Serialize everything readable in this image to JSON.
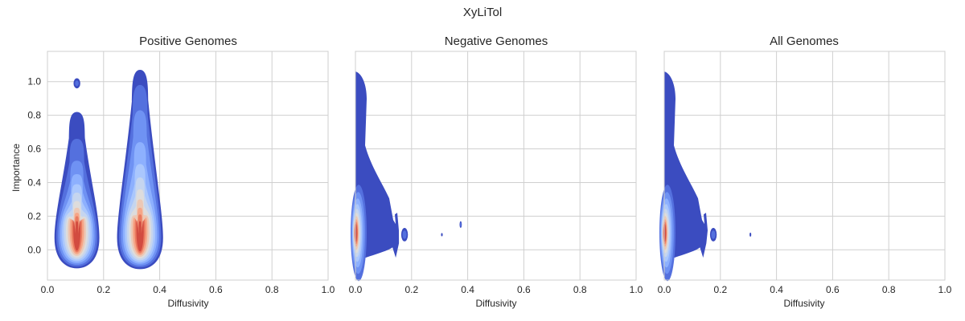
{
  "colors": {
    "background": "#ffffff",
    "grid": "#cfcfcf",
    "frame": "#cfcfcf",
    "text": "#262626",
    "colormap": "coolwarm",
    "levels": [
      "#3b4cc0",
      "#5470de",
      "#6f92f3",
      "#8db0fe",
      "#aac7fd",
      "#c5d5ef",
      "#dddcdc",
      "#ecc8b5",
      "#f6a688",
      "#ea7b60",
      "#d24b40"
    ]
  },
  "chart_data": {
    "type": "kde_contour_panels",
    "title": "XyLiTol",
    "panels": [
      {
        "title": "Positive Genomes",
        "xlabel": "Diffusivity",
        "ylabel": "Importance",
        "xlim": [
          0.0,
          1.0
        ],
        "ylim": [
          -0.18,
          1.18
        ],
        "xticks": [
          "0.0",
          "0.2",
          "0.4",
          "0.6",
          "0.8",
          "1.0"
        ],
        "yticks": [
          "0.0",
          "0.2",
          "0.4",
          "0.6",
          "0.8",
          "1.0"
        ],
        "show_yticklabels": true,
        "grid": true,
        "density_clusters": [
          {
            "center_x": 0.105,
            "peak_y": 0.11,
            "half_width": 0.08,
            "y_bottom": -0.11,
            "y_top": 0.82,
            "level_tops": [
              0.66,
              0.53,
              0.45,
              0.39,
              0.34,
              0.29,
              0.25,
              0.22,
              0.2,
              0.17
            ]
          },
          {
            "center_x": 0.105,
            "center_y": 0.99,
            "type": "blob",
            "rx": 0.012,
            "ry": 0.03
          },
          {
            "center_x": 0.33,
            "peak_y": 0.11,
            "half_width": 0.082,
            "y_bottom": -0.115,
            "y_top": 1.07,
            "level_tops": [
              0.98,
              0.83,
              0.64,
              0.51,
              0.43,
              0.36,
              0.3,
              0.25,
              0.21,
              0.17
            ]
          }
        ]
      },
      {
        "title": "Negative Genomes",
        "xlabel": "Diffusivity",
        "ylabel": "",
        "xlim": [
          0.0,
          1.0
        ],
        "ylim": [
          -0.18,
          1.18
        ],
        "xticks": [
          "0.0",
          "0.2",
          "0.4",
          "0.6",
          "0.8",
          "1.0"
        ],
        "yticks": [
          "0.0",
          "0.2",
          "0.4",
          "0.6",
          "0.8",
          "1.0"
        ],
        "show_yticklabels": false,
        "grid": true,
        "density_clusters": [
          {
            "type": "edge",
            "peak_y": 0.11,
            "y_top": 1.06,
            "y_bottom": -0.07,
            "max_x": 0.155
          },
          {
            "type": "small_blob",
            "center_x": 0.175,
            "center_y": 0.09,
            "rx": 0.012,
            "ry": 0.04
          },
          {
            "type": "small_blob",
            "center_x": 0.308,
            "center_y": 0.09,
            "rx": 0.003,
            "ry": 0.01
          },
          {
            "type": "small_blob",
            "center_x": 0.375,
            "center_y": 0.15,
            "rx": 0.004,
            "ry": 0.02
          }
        ]
      },
      {
        "title": "All Genomes",
        "xlabel": "Diffusivity",
        "ylabel": "",
        "xlim": [
          0.0,
          1.0
        ],
        "ylim": [
          -0.18,
          1.18
        ],
        "xticks": [
          "0.0",
          "0.2",
          "0.4",
          "0.6",
          "0.8",
          "1.0"
        ],
        "yticks": [
          "0.0",
          "0.2",
          "0.4",
          "0.6",
          "0.8",
          "1.0"
        ],
        "show_yticklabels": false,
        "grid": true,
        "density_clusters": [
          {
            "type": "edge",
            "peak_y": 0.11,
            "y_top": 1.06,
            "y_bottom": -0.07,
            "max_x": 0.15
          },
          {
            "type": "small_blob",
            "center_x": 0.175,
            "center_y": 0.09,
            "rx": 0.012,
            "ry": 0.04
          },
          {
            "type": "small_blob",
            "center_x": 0.307,
            "center_y": 0.09,
            "rx": 0.003,
            "ry": 0.012
          }
        ]
      }
    ]
  }
}
